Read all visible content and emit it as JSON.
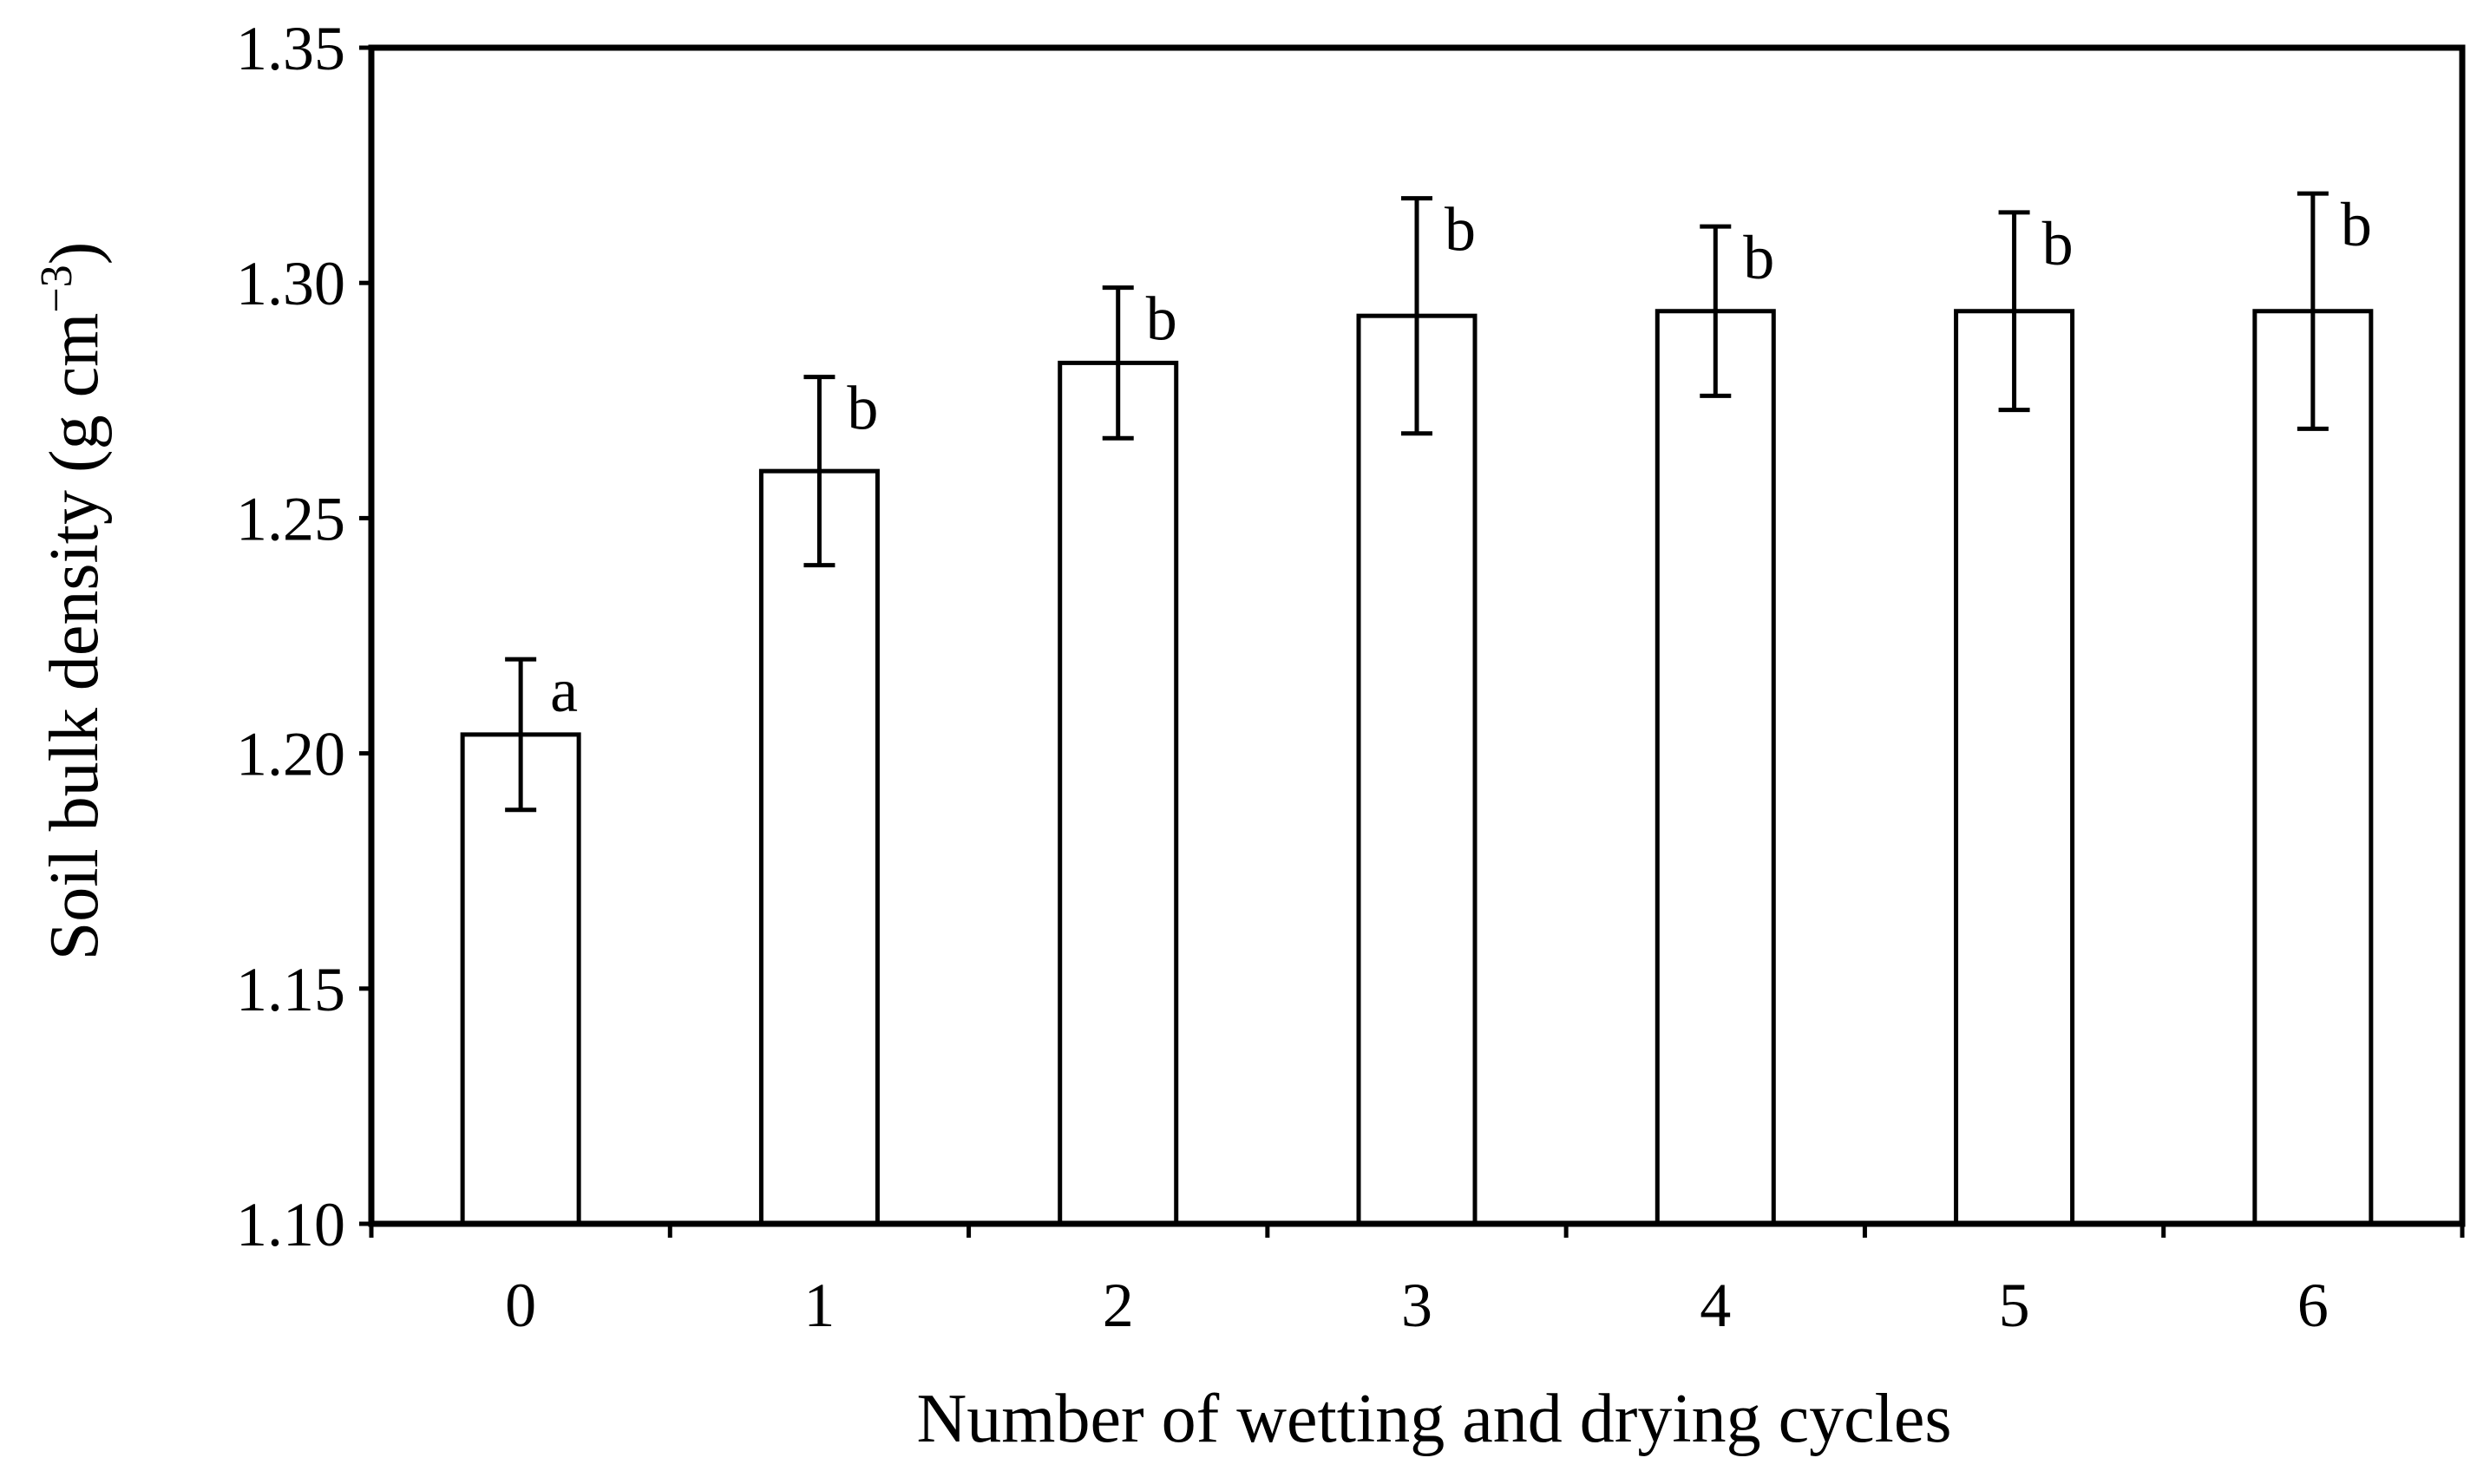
{
  "chart_data": {
    "type": "bar",
    "title": "",
    "xlabel": "Number of wetting and drying cycles",
    "ylabel": {
      "main": "Soil bulk density (g cm",
      "superscript": "−3",
      "close": ")"
    },
    "categories": [
      "0",
      "1",
      "2",
      "3",
      "4",
      "5",
      "6"
    ],
    "values": [
      1.204,
      1.26,
      1.283,
      1.293,
      1.294,
      1.294,
      1.294
    ],
    "error": [
      0.016,
      0.02,
      0.016,
      0.025,
      0.018,
      0.021,
      0.025
    ],
    "significance": [
      "a",
      "b",
      "b",
      "b",
      "b",
      "b",
      "b"
    ],
    "ylim": [
      1.1,
      1.35
    ],
    "yticks": [
      "1.10",
      "1.15",
      "1.20",
      "1.25",
      "1.30",
      "1.35"
    ],
    "grid": false,
    "legend": null,
    "colors": {
      "bar_fill": "#ffffff",
      "stroke": "#000000"
    }
  }
}
